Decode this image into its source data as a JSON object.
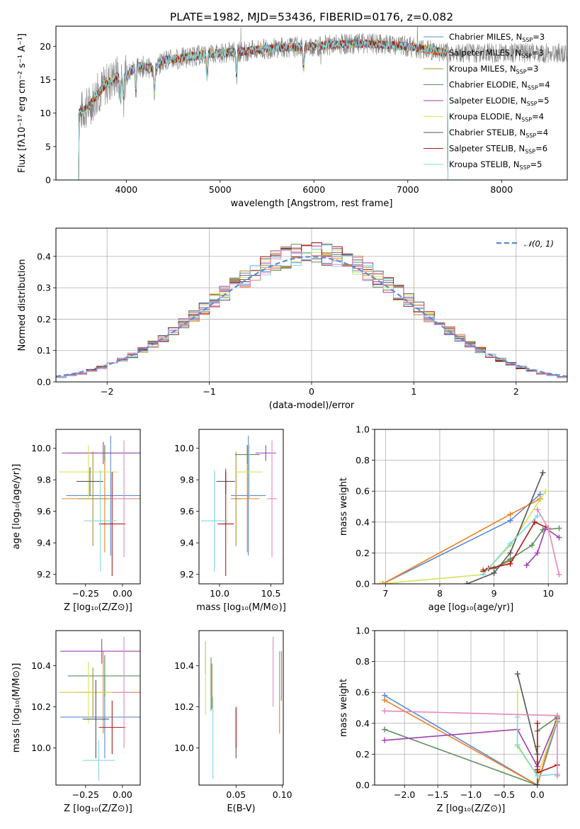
{
  "figure": {
    "title": "PLATE=1982, MJD=53436, FIBERID=0176, z=0.082"
  },
  "colors": {
    "chabrier_miles": "#5b8bd6",
    "salpeter_miles": "#f07f1e",
    "kroupa_miles": "#b08b30",
    "chabrier_elodie": "#5e8e5e",
    "salpeter_elodie": "#9f3fb3",
    "kroupa_elodie": "#d4e35a",
    "chabrier_stelib": "#555555",
    "salpeter_stelib": "#b01818",
    "kroupa_stelib": "#7fd7e0",
    "pink": "#e687bc",
    "data": "#808080",
    "normal": "#5b8bd6",
    "grid": "#b0b0b0"
  },
  "chart_data": [
    {
      "id": "spectrum",
      "type": "line",
      "title": "PLATE=1982, MJD=53436, FIBERID=0176, z=0.082",
      "xlabel": "wavelength [Angstrom, rest frame]",
      "ylabel": "Flux [fλ10⁻¹⁷ erg cm⁻² s⁻¹ A⁻¹]",
      "xlim": [
        3250,
        8700
      ],
      "ylim": [
        0,
        23
      ],
      "xticks": [
        4000,
        5000,
        6000,
        7000,
        8000
      ],
      "yticks": [
        0,
        5,
        10,
        15,
        20
      ],
      "grid": false,
      "legend": "top-right",
      "continuum": {
        "x": [
          3500,
          3600,
          3700,
          3800,
          3900,
          4000,
          4100,
          4200,
          4300,
          4400,
          4500,
          4700,
          5000,
          5300,
          5600,
          6000,
          6300,
          6600,
          7000,
          7300,
          7420
        ],
        "y": [
          10.0,
          11.0,
          13.0,
          14.5,
          15.5,
          15.5,
          17.0,
          17.0,
          16.5,
          18.0,
          18.0,
          18.5,
          19.0,
          19.3,
          19.8,
          20.0,
          20.3,
          20.4,
          20.0,
          19.3,
          19.0
        ]
      },
      "series": [
        {
          "name": "Chabrier MILES, N",
          "sub": "SSP",
          "suffix": "=3",
          "color": "#5b8bd6"
        },
        {
          "name": "Salpeter MILES, N",
          "sub": "SSP",
          "suffix": "=3",
          "color": "#f07f1e"
        },
        {
          "name": "Kroupa MILES, N",
          "sub": "SSP",
          "suffix": "=3",
          "color": "#b08b30"
        },
        {
          "name": "Chabrier ELODIE, N",
          "sub": "SSP",
          "suffix": "=4",
          "color": "#5e8e5e"
        },
        {
          "name": "Salpeter ELODIE, N",
          "sub": "SSP",
          "suffix": "=5",
          "color": "#9f3fb3"
        },
        {
          "name": "Kroupa ELODIE, N",
          "sub": "SSP",
          "suffix": "=4",
          "color": "#d4e35a"
        },
        {
          "name": "Chabrier STELIB, N",
          "sub": "SSP",
          "suffix": "=4",
          "color": "#555555"
        },
        {
          "name": "Salpeter STELIB, N",
          "sub": "SSP",
          "suffix": "=6",
          "color": "#b01818"
        },
        {
          "name": "Kroupa STELIB, N",
          "sub": "SSP",
          "suffix": "=5",
          "color": "#7fd7e0"
        }
      ]
    },
    {
      "id": "residuals",
      "type": "area",
      "xlabel": "(data-model)/error",
      "ylabel": "Normed distribution",
      "xlim": [
        -2.5,
        2.5
      ],
      "ylim": [
        0,
        0.49
      ],
      "xticks": [
        -2,
        -1,
        0,
        1,
        2
      ],
      "yticks": [
        0.0,
        0.1,
        0.2,
        0.3,
        0.4
      ],
      "grid": true,
      "legend": "top-right",
      "legend_label": "𝒩(0, 1)",
      "bin_width": 0.1
    },
    {
      "id": "age_vs_Z",
      "type": "scatter",
      "xlabel": "Z [log₁₀(Z/Z⊙)]",
      "ylabel": "age  [log₁₀(age/yr)]",
      "xlim": [
        -0.45,
        0.12
      ],
      "ylim": [
        9.14,
        10.12
      ],
      "xticks": [
        -0.25,
        0.0
      ],
      "yticks": [
        9.2,
        9.4,
        9.6,
        9.8,
        10.0
      ],
      "points": [
        {
          "x": -0.08,
          "xerr": 0.3,
          "y": 9.7,
          "yerr": 0.38,
          "color": "#5b8bd6"
        },
        {
          "x": -0.12,
          "xerr": 0.29,
          "y": 9.68,
          "yerr": 0.34,
          "color": "#f07f1e"
        },
        {
          "x": -0.2,
          "xerr": 0.1,
          "y": 9.68,
          "yerr": 0.3,
          "color": "#b08b30"
        },
        {
          "x": -0.12,
          "xerr": 0.25,
          "y": 9.97,
          "yerr": 0.05,
          "color": "#5e8e5e"
        },
        {
          "x": -0.13,
          "xerr": 0.28,
          "y": 9.97,
          "yerr": 0.07,
          "color": "#9f3fb3"
        },
        {
          "x": -0.23,
          "xerr": 0.2,
          "y": 9.85,
          "yerr": 0.17,
          "color": "#d4e35a"
        },
        {
          "x": -0.22,
          "xerr": 0.09,
          "y": 9.79,
          "yerr": 0.09,
          "color": "#555555"
        },
        {
          "x": -0.07,
          "xerr": 0.09,
          "y": 9.52,
          "yerr": 0.33,
          "color": "#b01818"
        },
        {
          "x": -0.15,
          "xerr": 0.11,
          "y": 9.54,
          "yerr": 0.32,
          "color": "#7fd7e0"
        },
        {
          "x": 0.01,
          "xerr": 0.08,
          "y": 9.68,
          "yerr": 0.37,
          "color": "#e687bc"
        }
      ]
    },
    {
      "id": "age_vs_mass",
      "type": "scatter",
      "xlabel": "mass [log₁₀(M/M⊙)]",
      "ylabel": "",
      "xlim": [
        9.8,
        10.62
      ],
      "ylim": [
        9.14,
        10.12
      ],
      "xticks": [
        10.0,
        10.5
      ],
      "yticks": [
        9.2,
        9.4,
        9.6,
        9.8,
        10.0
      ],
      "points": [
        {
          "x": 10.28,
          "xerr": 0.17,
          "y": 9.7,
          "yerr": 0.38,
          "color": "#5b8bd6"
        },
        {
          "x": 10.27,
          "xerr": 0.12,
          "y": 9.68,
          "yerr": 0.34,
          "color": "#f07f1e"
        },
        {
          "x": 10.16,
          "xerr": 0.05,
          "y": 9.68,
          "yerr": 0.3,
          "color": "#b08b30"
        },
        {
          "x": 10.27,
          "xerr": 0.12,
          "y": 9.96,
          "yerr": 0.06,
          "color": "#5e8e5e"
        },
        {
          "x": 10.45,
          "xerr": 0.1,
          "y": 9.97,
          "yerr": 0.05,
          "color": "#9f3fb3"
        },
        {
          "x": 10.29,
          "xerr": 0.13,
          "y": 9.85,
          "yerr": 0.17,
          "color": "#d4e35a"
        },
        {
          "x": 10.06,
          "xerr": 0.09,
          "y": 9.79,
          "yerr": 0.08,
          "color": "#555555"
        },
        {
          "x": 10.06,
          "xerr": 0.08,
          "y": 9.52,
          "yerr": 0.33,
          "color": "#b01818"
        },
        {
          "x": 9.95,
          "xerr": 0.13,
          "y": 9.54,
          "yerr": 0.32,
          "color": "#7fd7e0"
        },
        {
          "x": 10.51,
          "xerr": 0.05,
          "y": 9.68,
          "yerr": 0.37,
          "color": "#e687bc"
        }
      ]
    },
    {
      "id": "weight_vs_age",
      "type": "line",
      "xlabel": "age  [log₁₀(age/yr)]",
      "ylabel": "mass weight",
      "xlim": [
        6.8,
        10.35
      ],
      "ylim": [
        0,
        1.0
      ],
      "xticks": [
        7,
        8,
        9,
        10
      ],
      "yticks": [
        0.0,
        0.2,
        0.4,
        0.6,
        0.8,
        1.0
      ],
      "grid": true,
      "series": [
        {
          "color": "#5b8bd6",
          "x": [
            6.95,
            9.3,
            9.85
          ],
          "y": [
            0.0,
            0.41,
            0.58
          ]
        },
        {
          "color": "#f07f1e",
          "x": [
            6.95,
            9.3,
            9.85
          ],
          "y": [
            0.0,
            0.45,
            0.55
          ]
        },
        {
          "color": "#b08b30",
          "x": [
            8.8,
            9.0,
            9.3
          ],
          "y": [
            0.09,
            0.1,
            0.15
          ]
        },
        {
          "color": "#5e8e5e",
          "x": [
            9.0,
            9.3,
            9.7,
            9.9,
            10.2
          ],
          "y": [
            0.1,
            0.16,
            0.25,
            0.35,
            0.36
          ]
        },
        {
          "color": "#9f3fb3",
          "x": [
            9.6,
            9.8,
            9.95,
            10.2
          ],
          "y": [
            0.12,
            0.2,
            0.36,
            0.3
          ]
        },
        {
          "color": "#d4e35a",
          "x": [
            6.9,
            8.8,
            9.3,
            9.95
          ],
          "y": [
            0.0,
            0.06,
            0.25,
            0.6
          ]
        },
        {
          "color": "#555555",
          "x": [
            8.5,
            9.0,
            9.3,
            9.9
          ],
          "y": [
            0.0,
            0.07,
            0.2,
            0.72
          ]
        },
        {
          "color": "#b01818",
          "x": [
            8.8,
            8.9,
            9.3,
            9.75,
            10.0
          ],
          "y": [
            0.08,
            0.1,
            0.13,
            0.4,
            0.36
          ]
        },
        {
          "color": "#7fd7e0",
          "x": [
            8.8,
            9.3,
            9.8
          ],
          "y": [
            0.06,
            0.26,
            0.44
          ]
        },
        {
          "color": "#e687bc",
          "x": [
            9.8,
            10.0,
            10.2
          ],
          "y": [
            0.48,
            0.36,
            0.06
          ]
        }
      ]
    },
    {
      "id": "mass_vs_Z",
      "type": "scatter",
      "xlabel": "Z [log₁₀(Z/Z⊙)]",
      "ylabel": "mass [log₁₀(M/M⊙)]",
      "xlim": [
        -0.45,
        0.12
      ],
      "ylim": [
        9.82,
        10.57
      ],
      "xticks": [
        -0.25,
        0.0
      ],
      "yticks": [
        10.0,
        10.2,
        10.4
      ],
      "points": [
        {
          "x": -0.12,
          "xerr": 0.3,
          "y": 10.15,
          "yerr": 0.2,
          "color": "#5b8bd6"
        },
        {
          "x": -0.13,
          "xerr": 0.29,
          "y": 10.27,
          "yerr": 0.2,
          "color": "#f07f1e"
        },
        {
          "x": -0.2,
          "xerr": 0.1,
          "y": 10.27,
          "yerr": 0.12,
          "color": "#b08b30"
        },
        {
          "x": -0.12,
          "xerr": 0.25,
          "y": 10.35,
          "yerr": 0.1,
          "color": "#5e8e5e"
        },
        {
          "x": -0.14,
          "xerr": 0.28,
          "y": 10.47,
          "yerr": 0.06,
          "color": "#9f3fb3"
        },
        {
          "x": -0.23,
          "xerr": 0.2,
          "y": 10.27,
          "yerr": 0.15,
          "color": "#d4e35a"
        },
        {
          "x": -0.18,
          "xerr": 0.09,
          "y": 10.14,
          "yerr": 0.19,
          "color": "#555555"
        },
        {
          "x": -0.07,
          "xerr": 0.09,
          "y": 10.1,
          "yerr": 0.13,
          "color": "#b01818"
        },
        {
          "x": -0.16,
          "xerr": 0.11,
          "y": 9.94,
          "yerr": 0.1,
          "color": "#7fd7e0"
        },
        {
          "x": 0.01,
          "xerr": 0.08,
          "y": 10.27,
          "yerr": 0.27,
          "color": "#e687bc"
        }
      ]
    },
    {
      "id": "mass_vs_ebv",
      "type": "scatter",
      "xlabel": "E(B-V)",
      "ylabel": "",
      "xlim": [
        0.01,
        0.101
      ],
      "ylim": [
        9.82,
        10.57
      ],
      "xticks": [
        0.05,
        0.1
      ],
      "yticks": [
        10.0,
        10.2,
        10.4
      ],
      "points": [
        {
          "x": 0.099,
          "xerr": 0,
          "y": 10.35,
          "yerr": 0.12,
          "color": "#5b8bd6"
        },
        {
          "x": 0.097,
          "xerr": 0,
          "y": 10.27,
          "yerr": 0.2,
          "color": "#f07f1e"
        },
        {
          "x": 0.024,
          "xerr": 0,
          "y": 10.3,
          "yerr": 0.11,
          "color": "#b08b30"
        },
        {
          "x": 0.023,
          "xerr": 0,
          "y": 10.31,
          "yerr": 0.13,
          "color": "#5e8e5e"
        },
        {
          "x": 0.017,
          "xerr": 0,
          "y": 10.44,
          "yerr": 0.08,
          "color": "#9f3fb3"
        },
        {
          "x": 0.017,
          "xerr": 0,
          "y": 10.34,
          "yerr": 0.18,
          "color": "#d4e35a"
        },
        {
          "x": 0.05,
          "xerr": 0,
          "y": 10.07,
          "yerr": 0.12,
          "color": "#555555"
        },
        {
          "x": 0.05,
          "xerr": 0,
          "y": 10.1,
          "yerr": 0.1,
          "color": "#b01818"
        },
        {
          "x": 0.025,
          "xerr": 0,
          "y": 10.05,
          "yerr": 0.2,
          "color": "#7fd7e0"
        },
        {
          "x": 0.09,
          "xerr": 0,
          "y": 10.37,
          "yerr": 0.17,
          "color": "#e687bc"
        }
      ]
    },
    {
      "id": "weight_vs_Z",
      "type": "line",
      "xlabel": "Z [log₁₀(Z/Z⊙)]",
      "ylabel": "mass weight",
      "xlim": [
        -2.45,
        0.45
      ],
      "ylim": [
        0,
        1.0
      ],
      "xticks": [
        -2.0,
        -1.5,
        -1.0,
        -0.5,
        0.0
      ],
      "yticks": [
        0.0,
        0.2,
        0.4,
        0.6,
        0.8,
        1.0
      ],
      "grid": true,
      "series": [
        {
          "color": "#5b8bd6",
          "x": [
            -2.3,
            0.0,
            0.3
          ],
          "y": [
            0.58,
            0.0,
            0.41
          ]
        },
        {
          "color": "#f07f1e",
          "x": [
            -2.3,
            0.0,
            0.3
          ],
          "y": [
            0.55,
            0.0,
            0.45
          ]
        },
        {
          "color": "#b08b30",
          "x": [
            0.0,
            0.0,
            0.0
          ],
          "y": [
            0.09,
            0.1,
            0.15
          ]
        },
        {
          "color": "#5e8e5e",
          "x": [
            -2.3,
            0.0,
            0.0,
            0.0,
            0.3
          ],
          "y": [
            0.36,
            0.0,
            0.25,
            0.35,
            0.44
          ]
        },
        {
          "color": "#9f3fb3",
          "x": [
            -2.3,
            -0.3,
            0.0,
            0.3
          ],
          "y": [
            0.29,
            0.36,
            0.12,
            0.43
          ]
        },
        {
          "color": "#d4e35a",
          "x": [
            -0.3,
            -0.3,
            0.0,
            0.3
          ],
          "y": [
            0.6,
            0.25,
            0.06,
            0.42
          ]
        },
        {
          "color": "#555555",
          "x": [
            -0.3,
            0.0,
            0.0
          ],
          "y": [
            0.72,
            0.2,
            0.0
          ]
        },
        {
          "color": "#b01818",
          "x": [
            0.0,
            0.0,
            0.0,
            0.3
          ],
          "y": [
            0.4,
            0.1,
            0.08,
            0.13
          ]
        },
        {
          "color": "#7fd7e0",
          "x": [
            -0.3,
            -0.3,
            0.0,
            0.3
          ],
          "y": [
            0.44,
            0.26,
            0.06,
            0.07
          ]
        },
        {
          "color": "#e687bc",
          "x": [
            -2.3,
            0.3,
            0.3
          ],
          "y": [
            0.48,
            0.45,
            0.06
          ]
        }
      ]
    }
  ]
}
